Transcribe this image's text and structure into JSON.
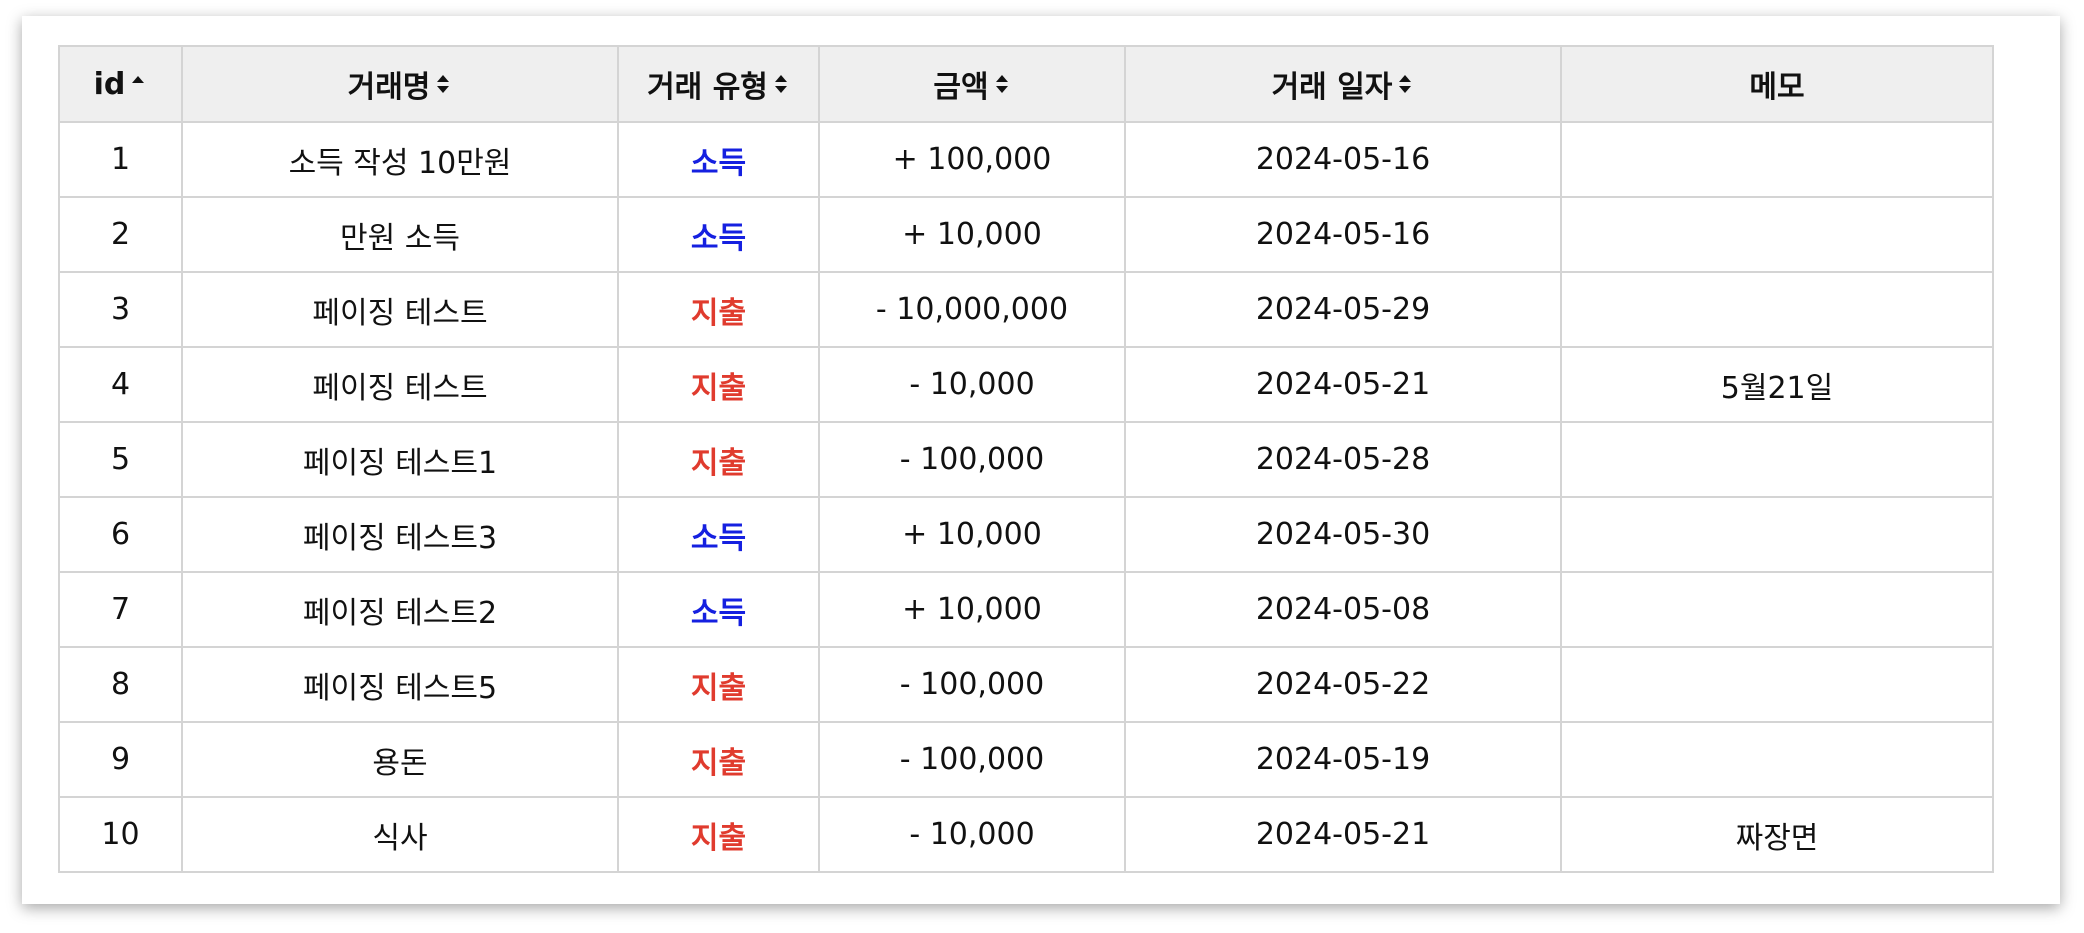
{
  "columns": [
    {
      "label": "id",
      "sort": "asc"
    },
    {
      "label": "거래명",
      "sort": "both"
    },
    {
      "label": "거래 유형",
      "sort": "both"
    },
    {
      "label": "금액",
      "sort": "both"
    },
    {
      "label": "거래 일자",
      "sort": "both"
    },
    {
      "label": "메모",
      "sort": "none"
    }
  ],
  "rows": [
    {
      "id": "1",
      "name": "소득 작성 10만원",
      "type": "소득",
      "kind": "income",
      "amount": "+ 100,000",
      "date": "2024-05-16",
      "memo": ""
    },
    {
      "id": "2",
      "name": "만원 소득",
      "type": "소득",
      "kind": "income",
      "amount": "+ 10,000",
      "date": "2024-05-16",
      "memo": ""
    },
    {
      "id": "3",
      "name": "페이징 테스트",
      "type": "지출",
      "kind": "expense",
      "amount": "- 10,000,000",
      "date": "2024-05-29",
      "memo": ""
    },
    {
      "id": "4",
      "name": "페이징 테스트",
      "type": "지출",
      "kind": "expense",
      "amount": "- 10,000",
      "date": "2024-05-21",
      "memo": "5월21일"
    },
    {
      "id": "5",
      "name": "페이징 테스트1",
      "type": "지출",
      "kind": "expense",
      "amount": "- 100,000",
      "date": "2024-05-28",
      "memo": ""
    },
    {
      "id": "6",
      "name": "페이징 테스트3",
      "type": "소득",
      "kind": "income",
      "amount": "+ 10,000",
      "date": "2024-05-30",
      "memo": ""
    },
    {
      "id": "7",
      "name": "페이징 테스트2",
      "type": "소득",
      "kind": "income",
      "amount": "+ 10,000",
      "date": "2024-05-08",
      "memo": ""
    },
    {
      "id": "8",
      "name": "페이징 테스트5",
      "type": "지출",
      "kind": "expense",
      "amount": "- 100,000",
      "date": "2024-05-22",
      "memo": ""
    },
    {
      "id": "9",
      "name": "용돈",
      "type": "지출",
      "kind": "expense",
      "amount": "- 100,000",
      "date": "2024-05-19",
      "memo": ""
    },
    {
      "id": "10",
      "name": "식사",
      "type": "지출",
      "kind": "expense",
      "amount": "- 10,000",
      "date": "2024-05-21",
      "memo": "짜장면"
    }
  ],
  "colors": {
    "income": "#1520e0",
    "expense": "#e03b2e",
    "header_bg": "#efefef",
    "border": "#d4d4d4"
  }
}
